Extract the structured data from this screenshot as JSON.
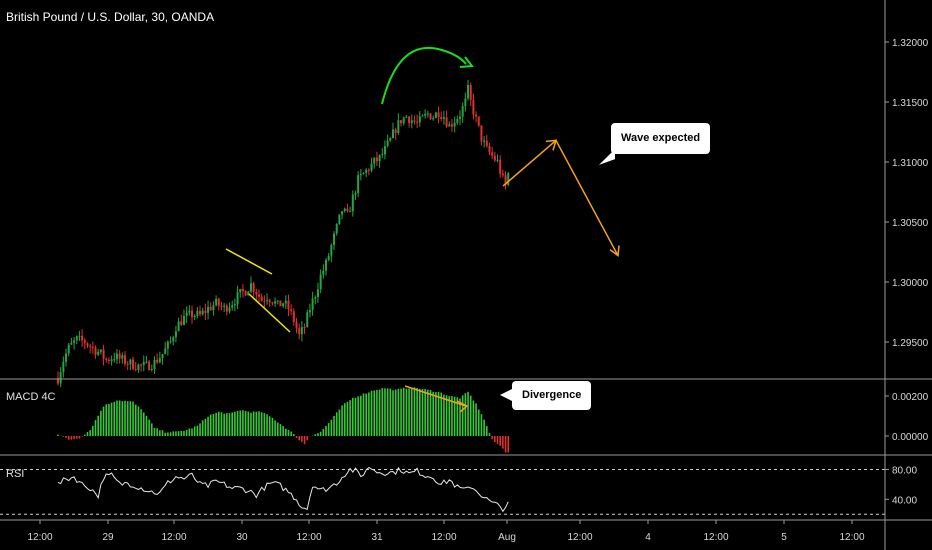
{
  "title": "British Pound / U.S. Dollar, 30, OANDA",
  "panes": {
    "macd": "MACD 4C",
    "rsi": "RSI"
  },
  "callouts": {
    "wave": "Wave expected",
    "divergence": "Divergence"
  },
  "colors": {
    "up": "#26a641",
    "down": "#e03030",
    "macd_up": "#33cc33",
    "macd_down": "#e03030",
    "annotation_yellow": "#f2e600",
    "annotation_green": "#1bdc1b",
    "annotation_orange": "#f5a020",
    "rsi_line": "#e8e8e8"
  },
  "chart_data": [
    {
      "type": "candlestick",
      "title": "British Pound / U.S. Dollar, 30, OANDA",
      "ylim": [
        1.292,
        1.3235
      ],
      "yticks": [
        "1.32000",
        "1.31500",
        "1.31000",
        "1.30500",
        "1.30000",
        "1.29500"
      ],
      "xticks": [
        "12:00",
        "29",
        "12:00",
        "30",
        "12:00",
        "31",
        "12:00",
        "Aug",
        "12:00",
        "4",
        "12:00",
        "5",
        "12:00"
      ],
      "close_path": [
        [
          0,
          1.292
        ],
        [
          2,
          1.2935
        ],
        [
          4,
          1.2945
        ],
        [
          7,
          1.2952
        ],
        [
          10,
          1.295
        ],
        [
          13,
          1.2945
        ],
        [
          16,
          1.294
        ],
        [
          18,
          1.2935
        ],
        [
          21,
          1.2938
        ],
        [
          24,
          1.2935
        ],
        [
          27,
          1.2932
        ],
        [
          30,
          1.293
        ],
        [
          33,
          1.293
        ],
        [
          36,
          1.2933
        ],
        [
          39,
          1.294
        ],
        [
          42,
          1.295
        ],
        [
          44,
          1.2963
        ],
        [
          47,
          1.297
        ],
        [
          50,
          1.2973
        ],
        [
          53,
          1.2972
        ],
        [
          56,
          1.2978
        ],
        [
          59,
          1.2982
        ],
        [
          62,
          1.2978
        ],
        [
          65,
          1.2983
        ],
        [
          68,
          1.299
        ],
        [
          70,
          1.2993
        ],
        [
          72,
          1.2998
        ],
        [
          74,
          1.2992
        ],
        [
          76,
          1.2985
        ],
        [
          78,
          1.2988
        ],
        [
          80,
          1.2985
        ],
        [
          82,
          1.298
        ],
        [
          84,
          1.2983
        ],
        [
          86,
          1.2978
        ],
        [
          88,
          1.2968
        ],
        [
          90,
          1.2955
        ],
        [
          92,
          1.2963
        ],
        [
          94,
          1.2978
        ],
        [
          96,
          1.299
        ],
        [
          98,
          1.3005
        ],
        [
          100,
          1.3015
        ],
        [
          102,
          1.303
        ],
        [
          104,
          1.3045
        ],
        [
          106,
          1.306
        ],
        [
          108,
          1.3055
        ],
        [
          110,
          1.307
        ],
        [
          112,
          1.3085
        ],
        [
          114,
          1.309
        ],
        [
          116,
          1.3095
        ],
        [
          118,
          1.31
        ],
        [
          120,
          1.3103
        ],
        [
          122,
          1.311
        ],
        [
          124,
          1.3118
        ],
        [
          126,
          1.3128
        ],
        [
          128,
          1.3135
        ],
        [
          130,
          1.3138
        ],
        [
          132,
          1.3135
        ],
        [
          134,
          1.3132
        ],
        [
          136,
          1.3136
        ],
        [
          138,
          1.314
        ],
        [
          140,
          1.3138
        ],
        [
          142,
          1.3142
        ],
        [
          144,
          1.3138
        ],
        [
          146,
          1.313
        ],
        [
          148,
          1.3135
        ],
        [
          150,
          1.314
        ],
        [
          152,
          1.315
        ],
        [
          153,
          1.316
        ],
        [
          154,
          1.315
        ],
        [
          156,
          1.3135
        ],
        [
          158,
          1.312
        ],
        [
          160,
          1.311
        ],
        [
          162,
          1.3105
        ],
        [
          164,
          1.31
        ],
        [
          166,
          1.3085
        ],
        [
          167,
          1.308
        ],
        [
          168,
          1.309
        ]
      ],
      "projection": [
        [
          168,
          1.308
        ],
        [
          186,
          1.3118
        ],
        [
          205,
          1.3022
        ]
      ],
      "price_range_high": 1.317,
      "price_range_low": 1.292
    },
    {
      "type": "bar",
      "title": "MACD 4C",
      "ylim": [
        -0.0009,
        0.0028
      ],
      "yticks": [
        "0.00200",
        "0.00000"
      ],
      "values_profile": [
        [
          0,
          0.0001
        ],
        [
          4,
          -0.0002
        ],
        [
          8,
          -0.0001
        ],
        [
          12,
          0.0003
        ],
        [
          17,
          0.0015
        ],
        [
          22,
          0.0018
        ],
        [
          28,
          0.0017
        ],
        [
          32,
          0.0012
        ],
        [
          36,
          0.0004
        ],
        [
          40,
          0.0002
        ],
        [
          44,
          0.0002
        ],
        [
          48,
          0.0003
        ],
        [
          52,
          0.0005
        ],
        [
          56,
          0.001
        ],
        [
          60,
          0.0012
        ],
        [
          64,
          0.0011
        ],
        [
          68,
          0.0013
        ],
        [
          72,
          0.0012
        ],
        [
          76,
          0.0012
        ],
        [
          80,
          0.0009
        ],
        [
          84,
          0.0005
        ],
        [
          87,
          0.0002
        ],
        [
          90,
          -0.0002
        ],
        [
          92,
          -0.0004
        ],
        [
          94,
          0.0
        ],
        [
          98,
          0.0002
        ],
        [
          102,
          0.0008
        ],
        [
          106,
          0.0015
        ],
        [
          110,
          0.0019
        ],
        [
          114,
          0.0021
        ],
        [
          118,
          0.0023
        ],
        [
          122,
          0.0024
        ],
        [
          126,
          0.0023
        ],
        [
          130,
          0.0024
        ],
        [
          134,
          0.0024
        ],
        [
          138,
          0.0023
        ],
        [
          142,
          0.0022
        ],
        [
          146,
          0.002
        ],
        [
          150,
          0.0019
        ],
        [
          153,
          0.0022
        ],
        [
          156,
          0.0016
        ],
        [
          158,
          0.0011
        ],
        [
          160,
          0.0005
        ],
        [
          162,
          -0.0002
        ],
        [
          164,
          -0.0004
        ],
        [
          166,
          -0.0006
        ],
        [
          167,
          -0.0008
        ]
      ]
    },
    {
      "type": "line",
      "title": "RSI",
      "ylim": [
        15,
        98
      ],
      "yticks": [
        "80.00",
        "40.00"
      ],
      "bands": [
        80,
        20
      ],
      "values_profile": [
        [
          0,
          60
        ],
        [
          3,
          67
        ],
        [
          6,
          70
        ],
        [
          9,
          60
        ],
        [
          12,
          55
        ],
        [
          15,
          45
        ],
        [
          17,
          70
        ],
        [
          20,
          72
        ],
        [
          23,
          60
        ],
        [
          26,
          62
        ],
        [
          29,
          58
        ],
        [
          32,
          54
        ],
        [
          35,
          50
        ],
        [
          38,
          48
        ],
        [
          41,
          62
        ],
        [
          44,
          70
        ],
        [
          47,
          68
        ],
        [
          50,
          72
        ],
        [
          53,
          60
        ],
        [
          56,
          58
        ],
        [
          59,
          64
        ],
        [
          62,
          60
        ],
        [
          65,
          55
        ],
        [
          68,
          55
        ],
        [
          71,
          52
        ],
        [
          74,
          46
        ],
        [
          77,
          56
        ],
        [
          80,
          62
        ],
        [
          83,
          58
        ],
        [
          86,
          50
        ],
        [
          89,
          40
        ],
        [
          91,
          30
        ],
        [
          93,
          28
        ],
        [
          95,
          60
        ],
        [
          98,
          52
        ],
        [
          101,
          55
        ],
        [
          104,
          62
        ],
        [
          107,
          74
        ],
        [
          109,
          80
        ],
        [
          111,
          78
        ],
        [
          113,
          70
        ],
        [
          115,
          80
        ],
        [
          117,
          82
        ],
        [
          119,
          77
        ],
        [
          122,
          76
        ],
        [
          125,
          76
        ],
        [
          128,
          80
        ],
        [
          131,
          74
        ],
        [
          134,
          78
        ],
        [
          137,
          72
        ],
        [
          140,
          70
        ],
        [
          143,
          60
        ],
        [
          146,
          66
        ],
        [
          149,
          56
        ],
        [
          152,
          52
        ],
        [
          154,
          58
        ],
        [
          156,
          52
        ],
        [
          158,
          46
        ],
        [
          160,
          40
        ],
        [
          162,
          35
        ],
        [
          164,
          32
        ],
        [
          166,
          28
        ],
        [
          168,
          33
        ]
      ]
    }
  ]
}
